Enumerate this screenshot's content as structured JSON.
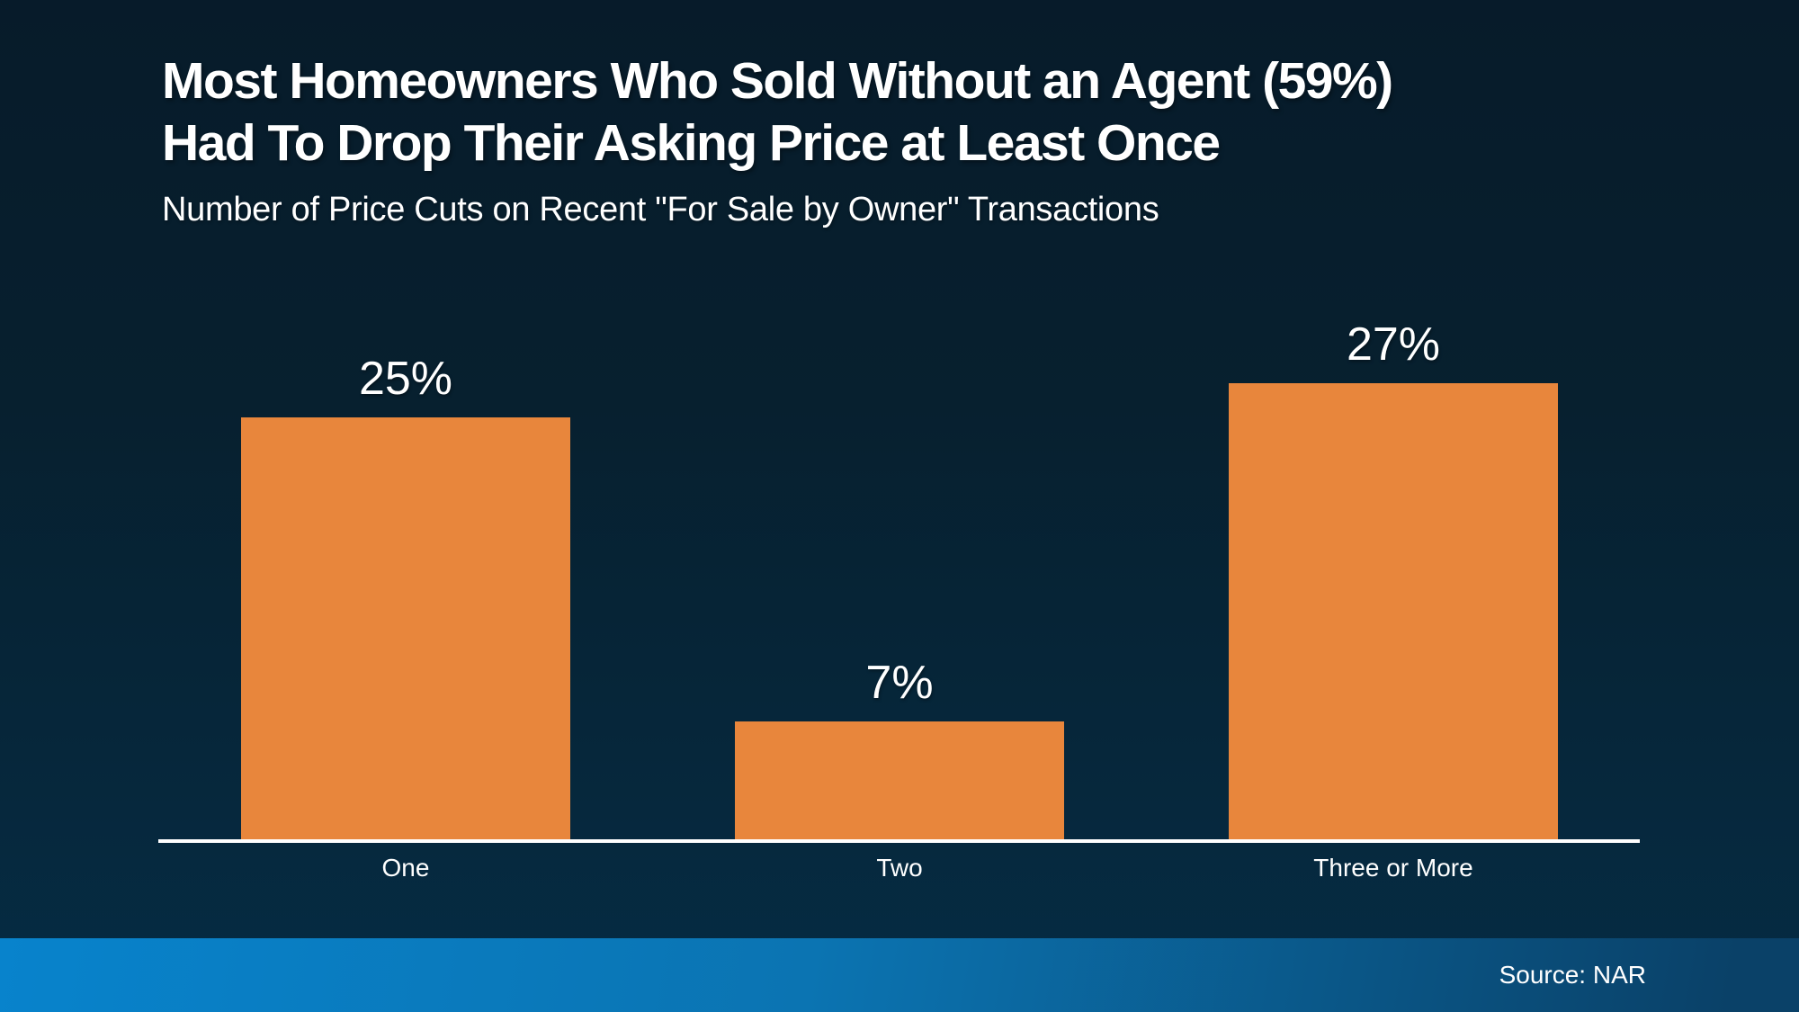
{
  "page": {
    "title_line1": "Most Homeowners Who Sold Without an Agent (59%)",
    "title_line2": "Had To Drop Their Asking Price at Least Once",
    "subtitle": "Number of Price Cuts on Recent \"For Sale by Owner\" Transactions",
    "source": "Source: NAR"
  },
  "chart_data": {
    "type": "bar",
    "title": "Most Homeowners Who Sold Without an Agent (59%) Had To Drop Their Asking Price at Least Once",
    "subtitle": "Number of Price Cuts on Recent \"For Sale by Owner\" Transactions",
    "categories": [
      "One",
      "Two",
      "Three or More"
    ],
    "values": [
      25,
      7,
      27
    ],
    "value_labels": [
      "25%",
      "7%",
      "27%"
    ],
    "xlabel": "",
    "ylabel": "",
    "ylim": [
      0,
      30
    ],
    "grid": false,
    "legend": false,
    "y_ticks_visible": false,
    "annotation": "Source: NAR"
  },
  "colors": {
    "background_top": "#071B2A",
    "background_bottom": "#052C44",
    "bar_orange": "#E8863C",
    "axis": "#FFFFFF",
    "footer_left": "#0883CC",
    "footer_right": "#0A4168",
    "text": "#FFFFFF"
  }
}
